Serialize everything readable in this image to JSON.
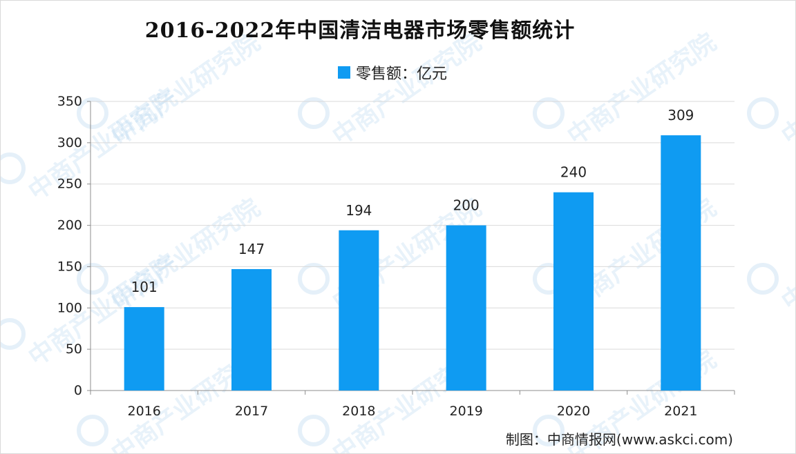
{
  "chart_data": {
    "type": "bar",
    "title": "2016-2022年中国清洁电器市场零售额统计",
    "categories": [
      "2016",
      "2017",
      "2018",
      "2019",
      "2020",
      "2021"
    ],
    "series": [
      {
        "name": "零售额：亿元",
        "values": [
          101,
          147,
          194,
          200,
          240,
          309
        ],
        "color": "#0f9bf2"
      }
    ],
    "data_labels": [
      "101",
      "147",
      "194",
      "200",
      "240",
      "309"
    ],
    "ylim": [
      0,
      350
    ],
    "yticks": [
      0,
      50,
      100,
      150,
      200,
      250,
      300,
      350
    ],
    "grid": true,
    "legend_position": "top-center"
  },
  "credit": "制图：中商情报网(www.askci.com)",
  "watermark_text": "中商产业研究院"
}
